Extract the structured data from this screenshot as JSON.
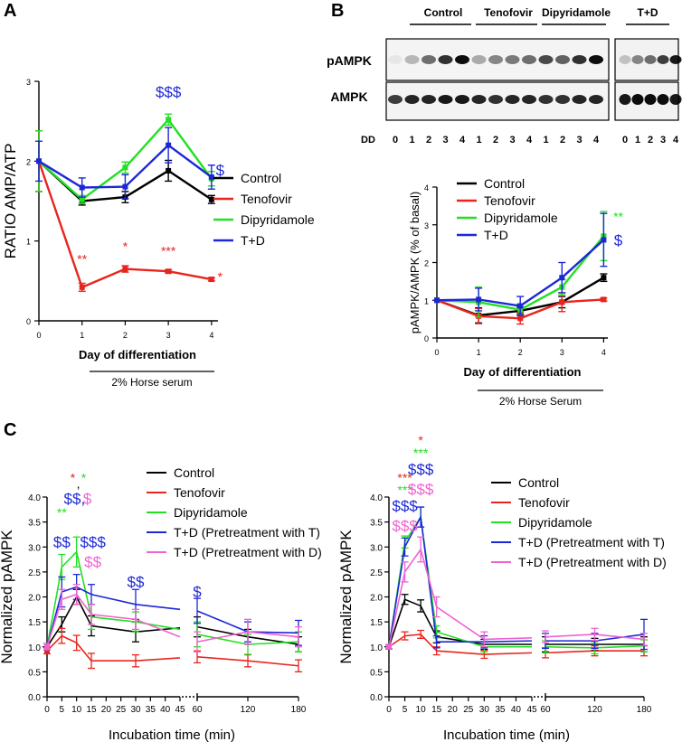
{
  "panels": {
    "a": {
      "letter": "A"
    },
    "b": {
      "letter": "B"
    },
    "c": {
      "letter": "C"
    }
  },
  "colors": {
    "control": "#000000",
    "tenofovir": "#e8251c",
    "dipyridamole": "#22e022",
    "td": "#1c28d6",
    "td_t": "#1c28d6",
    "td_d": "#f062d2"
  },
  "blot": {
    "groups": [
      "Control",
      "Tenofovir",
      "Dipyridamole",
      "T+D"
    ],
    "rows": [
      "pAMPK",
      "AMPK"
    ],
    "dd_label": "DD",
    "lanes_main": [
      "0",
      "1",
      "2",
      "3",
      "4",
      "1",
      "2",
      "3",
      "4",
      "1",
      "2",
      "3",
      "4"
    ],
    "lanes_td": [
      "0",
      "1",
      "2",
      "3",
      "4"
    ]
  },
  "chart_data": [
    {
      "id": "A",
      "type": "line",
      "title": "",
      "xlabel": "Day of differentiation",
      "ylabel": "RATIO AMP/ATP",
      "x": [
        0,
        1,
        2,
        3,
        4
      ],
      "xlim": [
        0,
        4.15
      ],
      "ylim": [
        0,
        3
      ],
      "xticks": [
        "0",
        "1",
        "2",
        "3",
        "4"
      ],
      "yticks": [
        "0",
        "1",
        "2",
        "3"
      ],
      "bracket_label": "2% Horse serum",
      "series": [
        {
          "name": "Control",
          "color_key": "control",
          "values": [
            2.0,
            1.5,
            1.55,
            1.88,
            1.52
          ],
          "err": [
            0.38,
            0.05,
            0.07,
            0.13,
            0.05
          ]
        },
        {
          "name": "Tenofovir",
          "color_key": "tenofovir",
          "values": [
            2.0,
            0.42,
            0.65,
            0.62,
            0.52
          ],
          "err": [
            0.38,
            0.05,
            0.04,
            0.02,
            0.02
          ]
        },
        {
          "name": "Dipyridamole",
          "color_key": "dipyridamole",
          "values": [
            2.0,
            1.52,
            1.92,
            2.52,
            1.78
          ],
          "err": [
            0.38,
            0.05,
            0.07,
            0.07,
            0.09
          ]
        },
        {
          "name": "T+D",
          "color_key": "td",
          "values": [
            2.0,
            1.67,
            1.68,
            2.2,
            1.8
          ],
          "err": [
            0.25,
            0.12,
            0.15,
            0.22,
            0.15
          ]
        }
      ],
      "annotations": [
        {
          "text": "**",
          "x": 1,
          "y": 0.72,
          "color_key": "tenofovir"
        },
        {
          "text": "*",
          "x": 2,
          "y": 0.88,
          "color_key": "tenofovir"
        },
        {
          "text": "***",
          "x": 3,
          "y": 0.82,
          "color_key": "tenofovir"
        },
        {
          "text": "*",
          "x": 4.2,
          "y": 0.5,
          "color_key": "tenofovir"
        },
        {
          "text": "$$$",
          "x": 3,
          "y": 2.8,
          "color_key": "td"
        },
        {
          "text": "$",
          "x": 4.2,
          "y": 1.82,
          "color_key": "td"
        }
      ]
    },
    {
      "id": "B",
      "type": "line",
      "title": "",
      "xlabel": "Day of differentiation",
      "ylabel": "pAMPK/AMPK (% of basal)",
      "x": [
        0,
        1,
        2,
        3,
        4
      ],
      "xlim": [
        0,
        4.1
      ],
      "ylim": [
        0,
        4
      ],
      "xticks": [
        "0",
        "1",
        "2",
        "3",
        "4"
      ],
      "yticks": [
        "0",
        "1",
        "2",
        "3",
        "4"
      ],
      "bracket_label": "2% Horse Serum",
      "series": [
        {
          "name": "Control",
          "color_key": "control",
          "values": [
            1.0,
            0.6,
            0.72,
            0.95,
            1.6
          ],
          "err": [
            0.0,
            0.2,
            0.1,
            0.15,
            0.1
          ]
        },
        {
          "name": "Tenofovir",
          "color_key": "tenofovir",
          "values": [
            1.0,
            0.58,
            0.52,
            0.95,
            1.02
          ],
          "err": [
            0.0,
            0.2,
            0.15,
            0.25,
            0.04
          ]
        },
        {
          "name": "Dipyridamole",
          "color_key": "dipyridamole",
          "values": [
            1.0,
            0.95,
            0.75,
            1.35,
            2.7
          ],
          "err": [
            0.0,
            0.4,
            0.15,
            0.2,
            0.65
          ]
        },
        {
          "name": "T+D",
          "color_key": "td",
          "values": [
            1.0,
            1.02,
            0.85,
            1.6,
            2.6
          ],
          "err": [
            0.0,
            0.3,
            0.25,
            0.4,
            0.7
          ]
        }
      ],
      "annotations": [
        {
          "text": "**",
          "x": 4.35,
          "y": 3.1,
          "color_key": "dipyridamole"
        },
        {
          "text": "$",
          "x": 4.35,
          "y": 2.45,
          "color_key": "td"
        }
      ]
    },
    {
      "id": "C-left",
      "type": "line",
      "title": "",
      "xlabel": "Incubation time (min)",
      "ylabel": "Normalized pAMPK",
      "ylim": [
        0,
        4
      ],
      "yticks": [
        "0.0",
        "0.5",
        "1.0",
        "1.5",
        "2.0",
        "2.5",
        "3.0",
        "3.5",
        "4.0"
      ],
      "xticks": [
        "0",
        "5",
        "10",
        "15",
        "20",
        "25",
        "30",
        "35",
        "40",
        "45",
        "60",
        "120",
        "180"
      ],
      "x_early": [
        0,
        5,
        10,
        15,
        30,
        45
      ],
      "x_late": [
        60,
        120,
        180
      ],
      "series": [
        {
          "name": "Control",
          "color_key": "control",
          "early": [
            1.0,
            1.45,
            2.0,
            1.42,
            1.3,
            1.38
          ],
          "late": [
            1.4,
            1.2,
            1.05
          ],
          "err_early": [
            0.06,
            0.15,
            0.15,
            0.2,
            0.2,
            0
          ],
          "err_late": [
            0.2,
            0.15,
            0.15
          ]
        },
        {
          "name": "Tenofovir",
          "color_key": "tenofovir",
          "early": [
            0.92,
            1.22,
            1.08,
            0.72,
            0.72,
            0.78
          ],
          "late": [
            0.8,
            0.72,
            0.62
          ],
          "err_early": [
            0.06,
            0.15,
            0.15,
            0.15,
            0.12,
            0
          ],
          "err_late": [
            0.12,
            0.12,
            0.12
          ]
        },
        {
          "name": "Dipyridamole",
          "color_key": "dipyridamole",
          "early": [
            1.0,
            2.6,
            2.9,
            1.6,
            1.5,
            1.35
          ],
          "late": [
            1.25,
            1.05,
            1.1
          ],
          "err_early": [
            0.06,
            0.25,
            0.3,
            0.25,
            0.2,
            0
          ],
          "err_late": [
            0.25,
            0.2,
            0.2
          ]
        },
        {
          "name": "T+D (Pretreatment with T)",
          "color_key": "td_t",
          "early": [
            1.0,
            2.1,
            2.2,
            2.05,
            1.85,
            1.75
          ],
          "late": [
            1.72,
            1.3,
            1.28
          ],
          "err_early": [
            0.06,
            0.3,
            0.25,
            0.2,
            0.3,
            0
          ],
          "err_late": [
            0.25,
            0.2,
            0.25
          ]
        },
        {
          "name": "T+D (Pretreatment with D)",
          "color_key": "td_d",
          "early": [
            1.0,
            1.95,
            2.05,
            1.65,
            1.55,
            1.2
          ],
          "late": [
            1.1,
            1.3,
            1.2
          ],
          "err_early": [
            0.06,
            0.2,
            0.2,
            0.2,
            0.2,
            0
          ],
          "err_late": [
            0.2,
            0.25,
            0.2
          ]
        }
      ],
      "annotations": [
        {
          "text": "**",
          "x": 5,
          "y": 3.6,
          "color_key": "dipyridamole"
        },
        {
          "text": "$$",
          "x": 5,
          "y": 3.0,
          "color_key": "td_t"
        },
        {
          "text": "*",
          "x": 8.7,
          "y": 4.3,
          "color_key": "tenofovir"
        },
        {
          "text": ",",
          "x": 10.6,
          "y": 4.18,
          "color_key": "control"
        },
        {
          "text": "*",
          "x": 12.4,
          "y": 4.3,
          "color_key": "dipyridamole"
        },
        {
          "text": "$$,",
          "x": 9.3,
          "y": 3.86,
          "color_key": "td_t"
        },
        {
          "text": "$",
          "x": 13.6,
          "y": 3.86,
          "color_key": "td_d"
        },
        {
          "text": "$$$",
          "x": 15.5,
          "y": 3.0,
          "color_key": "td_t"
        },
        {
          "text": "$$",
          "x": 15.5,
          "y": 2.6,
          "color_key": "td_d"
        },
        {
          "text": "$$",
          "x": 30,
          "y": 2.2,
          "color_key": "td_t"
        },
        {
          "text": "$",
          "x": 60,
          "y": 2.0,
          "color_key": "td_t"
        }
      ]
    },
    {
      "id": "C-right",
      "type": "line",
      "title": "",
      "xlabel": "Incubation time (min)",
      "ylabel": "Normalized pAMPK",
      "ylim": [
        0,
        4
      ],
      "yticks": [
        "0.0",
        "0.5",
        "1.0",
        "1.5",
        "2.0",
        "2.5",
        "3.0",
        "3.5",
        "4.0"
      ],
      "xticks": [
        "0",
        "5",
        "10",
        "15",
        "20",
        "25",
        "30",
        "35",
        "40",
        "45",
        "60",
        "120",
        "180"
      ],
      "x_early": [
        0,
        5,
        10,
        15,
        30,
        45
      ],
      "x_late": [
        60,
        120,
        180
      ],
      "series": [
        {
          "name": "Control",
          "color_key": "control",
          "early": [
            1.0,
            1.95,
            1.82,
            1.2,
            1.05,
            1.05
          ],
          "late": [
            1.05,
            1.05,
            1.05
          ],
          "err_early": [
            0.04,
            0.1,
            0.12,
            0.12,
            0.1,
            0
          ],
          "err_late": [
            0.15,
            0.12,
            0.15
          ]
        },
        {
          "name": "Tenofovir",
          "color_key": "tenofovir",
          "early": [
            1.0,
            1.22,
            1.25,
            0.92,
            0.85,
            0.88
          ],
          "late": [
            0.88,
            0.92,
            0.92
          ],
          "err_early": [
            0.04,
            0.08,
            0.08,
            0.08,
            0.08,
            0
          ],
          "err_late": [
            0.1,
            0.1,
            0.1
          ]
        },
        {
          "name": "Dipyridamole",
          "color_key": "dipyridamole",
          "early": [
            1.0,
            3.1,
            3.6,
            1.3,
            1.0,
            1.0
          ],
          "late": [
            1.0,
            0.98,
            1.02
          ],
          "err_early": [
            0.04,
            0.12,
            0.2,
            0.12,
            0.1,
            0
          ],
          "err_late": [
            0.12,
            0.12,
            0.12
          ]
        },
        {
          "name": "T+D (Pretreatment with T)",
          "color_key": "td_t",
          "early": [
            1.0,
            3.0,
            3.6,
            1.1,
            1.1,
            1.12
          ],
          "late": [
            1.12,
            1.12,
            1.25
          ],
          "err_early": [
            0.04,
            0.18,
            0.2,
            0.12,
            0.12,
            0
          ],
          "err_late": [
            0.15,
            0.15,
            0.3
          ]
        },
        {
          "name": "T+D (Pretreatment with D)",
          "color_key": "td_d",
          "early": [
            1.0,
            2.5,
            2.95,
            1.8,
            1.15,
            1.18
          ],
          "late": [
            1.2,
            1.25,
            1.15
          ],
          "err_early": [
            0.04,
            0.2,
            0.25,
            0.2,
            0.15,
            0
          ],
          "err_late": [
            0.12,
            0.12,
            0.12
          ]
        }
      ],
      "annotations": [
        {
          "text": "***",
          "x": 5,
          "y": 4.3,
          "color_key": "tenofovir"
        },
        {
          "text": "***",
          "x": 5,
          "y": 4.05,
          "color_key": "dipyridamole"
        },
        {
          "text": "$$$",
          "x": 5,
          "y": 3.72,
          "color_key": "td_t"
        },
        {
          "text": "$$$",
          "x": 5,
          "y": 3.32,
          "color_key": "td_d"
        },
        {
          "text": "*",
          "x": 10,
          "y": 5.05,
          "color_key": "tenofovir"
        },
        {
          "text": "***",
          "x": 10,
          "y": 4.8,
          "color_key": "dipyridamole"
        },
        {
          "text": "$$$",
          "x": 10,
          "y": 4.45,
          "color_key": "td_t"
        },
        {
          "text": "$$$",
          "x": 10,
          "y": 4.05,
          "color_key": "td_d"
        }
      ]
    }
  ]
}
